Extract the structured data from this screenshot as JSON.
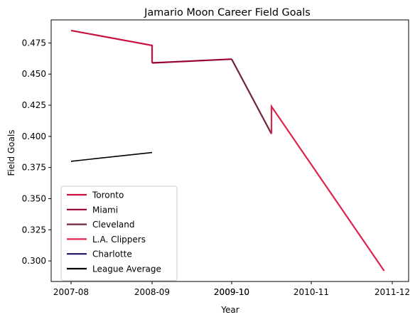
{
  "chart_data": {
    "type": "line",
    "title": "Jamario Moon Career Field Goals",
    "xlabel": "Year",
    "ylabel": "Field Goals",
    "x_tick_labels": [
      "2007-08",
      "2008-09",
      "2009-10",
      "2009-10",
      "2010-11",
      "2011-12"
    ],
    "y_ticks": [
      0.3,
      0.325,
      0.35,
      0.375,
      0.4,
      0.425,
      0.45,
      0.475
    ],
    "y_tick_labels": [
      "0.300",
      "0.325",
      "0.350",
      "0.375",
      "0.400",
      "0.425",
      "0.450",
      "0.475"
    ],
    "ylim": [
      0.2835,
      0.4935
    ],
    "legend_position": "lower-left",
    "grid": false,
    "series": [
      {
        "name": "Toronto",
        "color": "#c8103e",
        "points": [
          [
            0,
            0.485
          ],
          [
            1,
            0.473
          ],
          [
            1,
            0.459
          ]
        ]
      },
      {
        "name": "Miami",
        "color": "#98002e",
        "points": [
          [
            1,
            0.459
          ],
          [
            2.2,
            0.462
          ]
        ]
      },
      {
        "name": "Cleveland",
        "color": "#6f263d",
        "points": [
          [
            2.2,
            0.462
          ],
          [
            3.5,
            0.402
          ]
        ]
      },
      {
        "name": "L.A. Clippers",
        "color": "#e0234e",
        "points": [
          [
            3.5,
            0.402
          ],
          [
            3.5,
            0.424
          ],
          [
            4.9,
            0.292
          ]
        ]
      },
      {
        "name": "Charlotte",
        "color": "#1d1160",
        "points": []
      },
      {
        "name": "League Average",
        "color": "#000000",
        "points": [
          [
            0,
            0.38
          ],
          [
            1,
            0.387
          ]
        ]
      }
    ]
  }
}
